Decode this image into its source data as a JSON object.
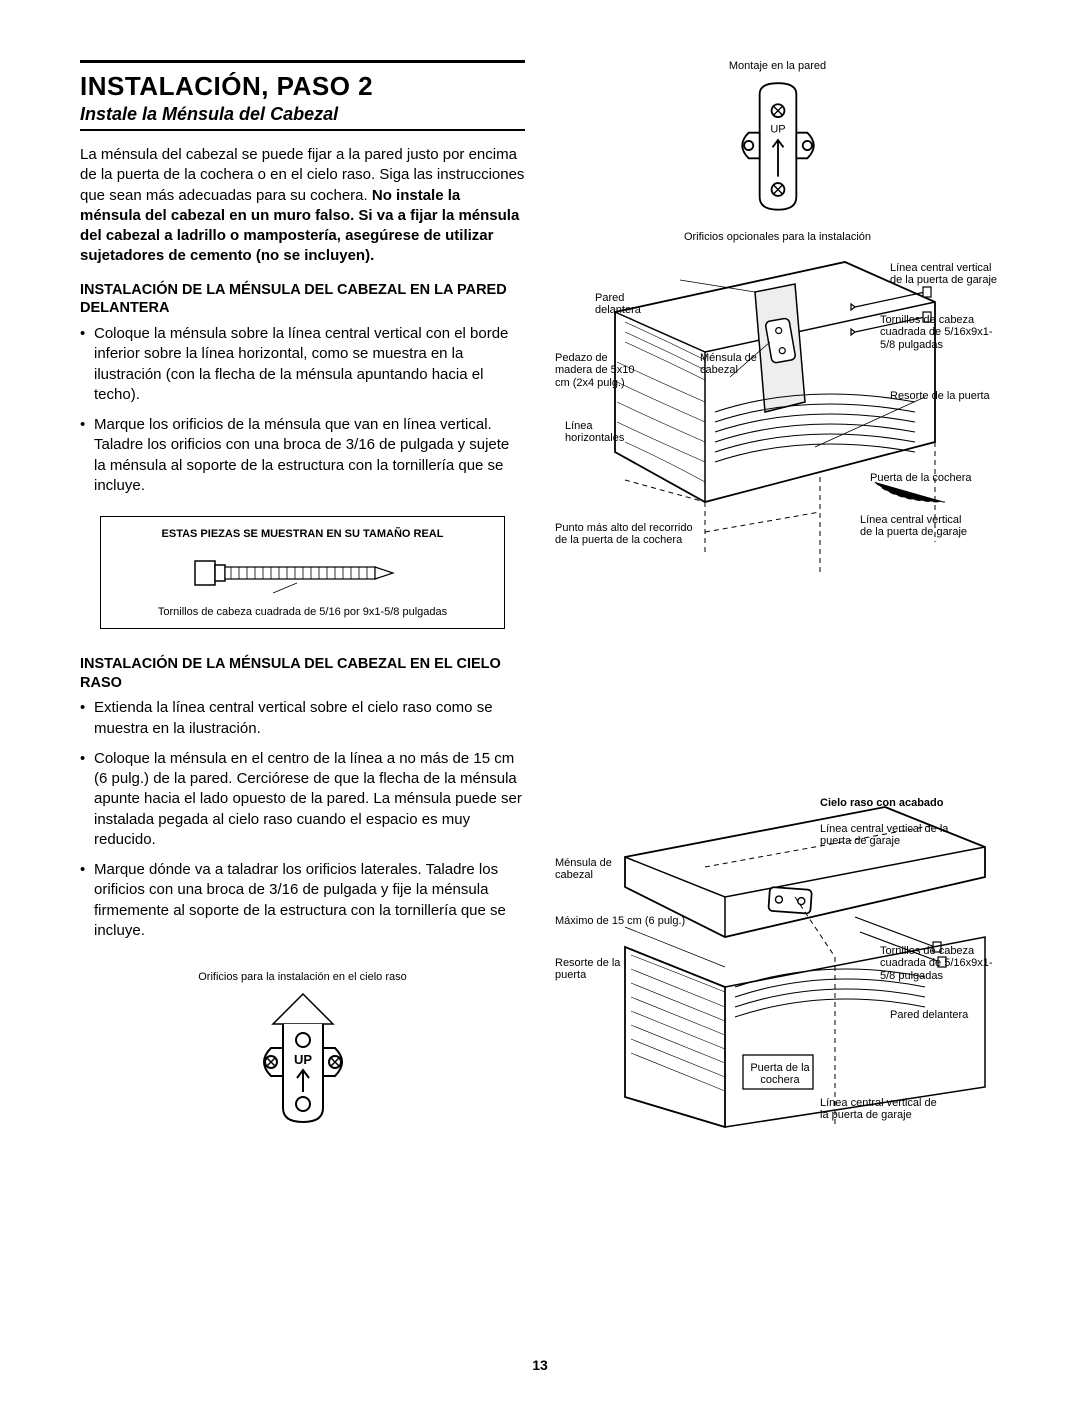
{
  "page_number": "13",
  "title": "INSTALACIÓN, PASO 2",
  "subtitle": "Instale la Ménsula del Cabezal",
  "intro_html": "La ménsula del cabezal se puede fijar a la pared justo por encima de la puerta de la cochera o en el cielo raso. Siga las instrucciones que sean más adecuadas para su cochera. <b>No instale la ménsula del cabezal en un muro falso. Si va a fijar la ménsula del cabezal a ladrillo o mampostería, asegúrese de utilizar sujetadores de cemento (no se incluyen).</b>",
  "section_a_head": "INSTALACIÓN DE LA MÉNSULA DEL CABEZAL EN LA PARED DELANTERA",
  "section_a_bullets": [
    "Coloque la ménsula sobre la línea central vertical con el borde inferior sobre la línea horizontal, como se muestra en la ilustración (con la flecha de la ménsula apuntando hacia el techo).",
    "Marque los orificios de la ménsula que van en línea vertical. Taladre los orificios con una broca de 3/16 de pulgada y sujete la ménsula al soporte de la estructura con la tornillería que se incluye."
  ],
  "hardware_box": {
    "title": "ESTAS PIEZAS SE MUESTRAN EN SU TAMAÑO REAL",
    "caption": "Tornillos de cabeza cuadrada de 5/16 por 9x1-5/8 pulgadas"
  },
  "section_b_head": "INSTALACIÓN DE LA MÉNSULA DEL CABEZAL EN EL CIELO RASO",
  "section_b_bullets": [
    "Extienda la línea central vertical sobre el cielo raso como se muestra en la ilustración.",
    "Coloque la ménsula en el centro de la línea a no más de 15 cm (6 pulg.) de la pared. Cerciórese de que la flecha de la ménsula apunte hacia el lado opuesto de la pared. La ménsula puede ser instalada pegada al cielo raso cuando el espacio es muy reducido.",
    "Marque dónde va a taladrar los orificios laterales. Taladre los orificios con una broca de 3/16 de pulgada y fije la ménsula firmemente al soporte de la estructura con la tornillería que se incluye."
  ],
  "bracket_fig_caption": "Orificios para la instalación en el cielo raso",
  "top_bracket_caption": "Montaje en la pared",
  "top_bracket_sub": "Orificios opcionales para la instalación",
  "labels_wall": {
    "a": "Línea central vertical de la puerta de garaje",
    "b": "Tornillos de cabeza cuadrada de 5/16x9x1-5/8 pulgadas",
    "c": "Pared delantera",
    "d": "Pedazo de madera de 5x10 cm (2x4 pulg.)",
    "e": "Ménsula de cabezal",
    "f": "Resorte de la puerta",
    "g": "Línea horizontales",
    "h": "Puerta de la cochera",
    "i": "Punto más alto del recorrido de la puerta de la cochera",
    "j": "Línea central vertical de la puerta de garaje"
  },
  "labels_ceiling": {
    "a": "Cielo raso con acabado",
    "b": "Línea central vertical de la puerta de garaje",
    "c": "Ménsula de cabezal",
    "d": "Máximo de 15 cm (6 pulg.)",
    "e": "Resorte de la puerta",
    "f": "Tornillos de cabeza cuadrada de 5/16x9x1-5/8 pulgadas",
    "g": "Pared delantera",
    "h": "Puerta de la cochera",
    "i": "Línea central vertical de la puerta de garaje"
  },
  "bracket_up_text": "UP"
}
